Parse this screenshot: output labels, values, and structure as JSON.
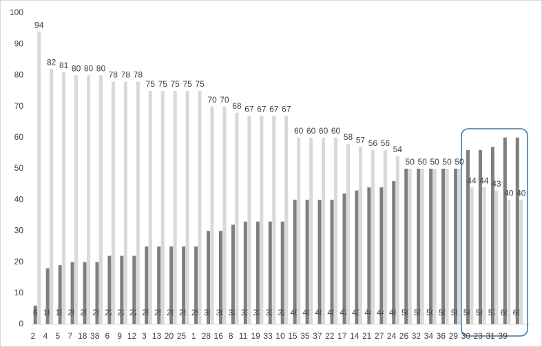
{
  "chart_data": {
    "type": "bar",
    "categories": [
      "2",
      "4",
      "5",
      "7",
      "18",
      "38",
      "6",
      "9",
      "12",
      "3",
      "13",
      "20",
      "25",
      "1",
      "28",
      "16",
      "8",
      "11",
      "19",
      "33",
      "10",
      "15",
      "35",
      "37",
      "22",
      "17",
      "14",
      "21",
      "27",
      "24",
      "26",
      "32",
      "34",
      "36",
      "29",
      "30",
      "23",
      "31",
      "39",
      null
    ],
    "series": [
      {
        "color": "#7f7f7f",
        "label_position": "bottom",
        "values": [
          6,
          18,
          19,
          20,
          20,
          20,
          22,
          22,
          22,
          25,
          25,
          25,
          25,
          25,
          30,
          30,
          32,
          33,
          33,
          33,
          33,
          40,
          40,
          40,
          40,
          42,
          43,
          44,
          44,
          46,
          50,
          50,
          50,
          50,
          50,
          56,
          56,
          57,
          60,
          60
        ]
      },
      {
        "color": "#d9d9d9",
        "label_position": "top",
        "values": [
          94,
          82,
          81,
          80,
          80,
          80,
          78,
          78,
          78,
          75,
          75,
          75,
          75,
          75,
          70,
          70,
          68,
          67,
          67,
          67,
          67,
          60,
          60,
          60,
          60,
          58,
          57,
          56,
          56,
          54,
          50,
          50,
          50,
          50,
          50,
          44,
          44,
          43,
          40,
          40
        ]
      }
    ],
    "ylim": [
      0,
      100
    ],
    "yticks": [
      0,
      10,
      20,
      30,
      40,
      50,
      60,
      70,
      80,
      90,
      100
    ],
    "grid": false
  }
}
